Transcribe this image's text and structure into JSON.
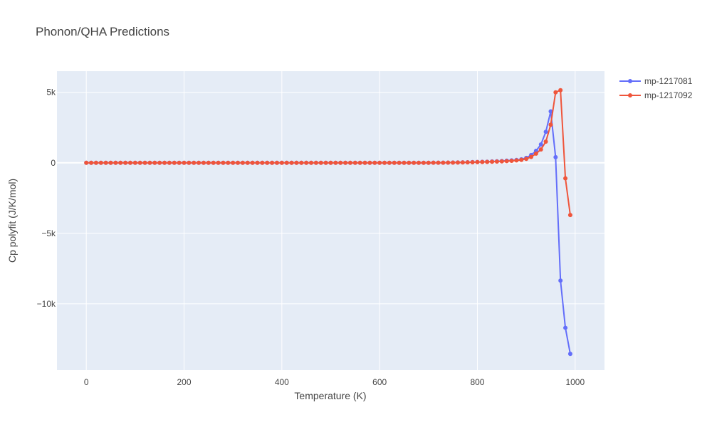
{
  "chart_data": {
    "type": "line",
    "title": "Phonon/QHA Predictions",
    "xlabel": "Temperature (K)",
    "ylabel": "Cp polyfit (J/K/mol)",
    "xlim": [
      -60,
      1060
    ],
    "ylim": [
      -14700,
      6500
    ],
    "x_ticks": [
      0,
      200,
      400,
      600,
      800,
      1000
    ],
    "x_tick_labels": [
      "0",
      "200",
      "400",
      "600",
      "800",
      "1000"
    ],
    "y_ticks": [
      5000,
      0,
      -5000,
      -10000
    ],
    "y_tick_labels": [
      "5k",
      "0",
      "−5k",
      "−10k"
    ],
    "grid": true,
    "legend_position": "top-right",
    "series": [
      {
        "name": "mp-1217081",
        "color": "#636efa",
        "x": [
          0,
          10,
          20,
          30,
          40,
          50,
          60,
          70,
          80,
          90,
          100,
          110,
          120,
          130,
          140,
          150,
          160,
          170,
          180,
          190,
          200,
          210,
          220,
          230,
          240,
          250,
          260,
          270,
          280,
          290,
          300,
          310,
          320,
          330,
          340,
          350,
          360,
          370,
          380,
          390,
          400,
          410,
          420,
          430,
          440,
          450,
          460,
          470,
          480,
          490,
          500,
          510,
          520,
          530,
          540,
          550,
          560,
          570,
          580,
          590,
          600,
          610,
          620,
          630,
          640,
          650,
          660,
          670,
          680,
          690,
          700,
          710,
          720,
          730,
          740,
          750,
          760,
          770,
          780,
          790,
          800,
          810,
          820,
          830,
          840,
          850,
          860,
          870,
          880,
          890,
          900,
          910,
          920,
          930,
          940,
          950,
          960,
          970,
          980,
          990
        ],
        "y": [
          0,
          0,
          0,
          0,
          0,
          0,
          0,
          0,
          0,
          0,
          0,
          0,
          0,
          0,
          0,
          0,
          0,
          0,
          0,
          0,
          0,
          0,
          0,
          0,
          0,
          0,
          0,
          0,
          0,
          0,
          0,
          0,
          0,
          0,
          0,
          0,
          0,
          0,
          0,
          0,
          0,
          0,
          0,
          0,
          0,
          0,
          0,
          0,
          0,
          0,
          0,
          0,
          0,
          0,
          0,
          0,
          0,
          0,
          0,
          0,
          0,
          0,
          0,
          0,
          0,
          0,
          0,
          0,
          0,
          0,
          0,
          5,
          8,
          10,
          15,
          20,
          25,
          30,
          40,
          50,
          60,
          70,
          80,
          95,
          110,
          130,
          150,
          170,
          200,
          250,
          350,
          550,
          850,
          1300,
          2200,
          3650,
          400,
          -8350,
          -11700,
          -13550
        ]
      },
      {
        "name": "mp-1217092",
        "color": "#ef553b",
        "x": [
          0,
          10,
          20,
          30,
          40,
          50,
          60,
          70,
          80,
          90,
          100,
          110,
          120,
          130,
          140,
          150,
          160,
          170,
          180,
          190,
          200,
          210,
          220,
          230,
          240,
          250,
          260,
          270,
          280,
          290,
          300,
          310,
          320,
          330,
          340,
          350,
          360,
          370,
          380,
          390,
          400,
          410,
          420,
          430,
          440,
          450,
          460,
          470,
          480,
          490,
          500,
          510,
          520,
          530,
          540,
          550,
          560,
          570,
          580,
          590,
          600,
          610,
          620,
          630,
          640,
          650,
          660,
          670,
          680,
          690,
          700,
          710,
          720,
          730,
          740,
          750,
          760,
          770,
          780,
          790,
          800,
          810,
          820,
          830,
          840,
          850,
          860,
          870,
          880,
          890,
          900,
          910,
          920,
          930,
          940,
          950,
          960,
          970,
          980,
          990
        ],
        "y": [
          0,
          0,
          0,
          0,
          0,
          0,
          0,
          0,
          0,
          0,
          0,
          0,
          0,
          0,
          0,
          0,
          0,
          0,
          0,
          0,
          0,
          0,
          0,
          0,
          0,
          0,
          0,
          0,
          0,
          0,
          0,
          0,
          0,
          0,
          0,
          0,
          0,
          0,
          0,
          0,
          0,
          0,
          0,
          0,
          0,
          0,
          0,
          0,
          0,
          0,
          0,
          0,
          0,
          0,
          0,
          0,
          0,
          0,
          0,
          0,
          0,
          0,
          0,
          0,
          0,
          0,
          0,
          0,
          0,
          0,
          0,
          5,
          8,
          10,
          12,
          15,
          20,
          25,
          30,
          40,
          50,
          55,
          65,
          75,
          90,
          105,
          120,
          140,
          170,
          210,
          280,
          420,
          650,
          950,
          1500,
          2700,
          5000,
          5150,
          -1100,
          -3700
        ]
      }
    ]
  }
}
